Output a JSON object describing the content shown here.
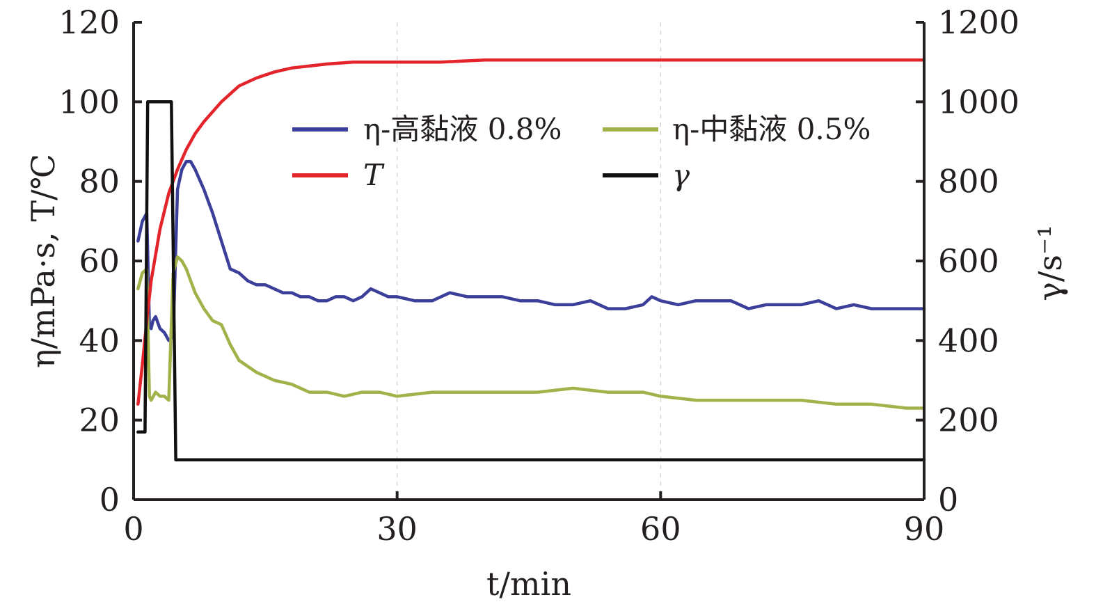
{
  "chart_data": {
    "type": "line",
    "title": "",
    "xlabel": "t/min",
    "ylabel_left": "η/mPa·s, T/℃",
    "ylabel_right": "γ/s⁻¹",
    "xlim": [
      0,
      90
    ],
    "ylim_left": [
      0,
      120
    ],
    "ylim_right": [
      0,
      1200
    ],
    "x_ticks": [
      "0",
      "30",
      "60",
      "90"
    ],
    "y_left_ticks": [
      "0",
      "20",
      "40",
      "60",
      "80",
      "100",
      "120"
    ],
    "y_right_ticks": [
      "0",
      "200",
      "400",
      "600",
      "800",
      "1000",
      "1200"
    ],
    "grid": true,
    "legend_position": "upper-center",
    "series": [
      {
        "name": "η-高黏液 0.8%",
        "axis": "left",
        "color": "#3b3f9a",
        "x": [
          0.5,
          1,
          1.5,
          1.8,
          2,
          2.2,
          2.5,
          3,
          3.5,
          4,
          4.5,
          5,
          5.5,
          6,
          6.5,
          7,
          8,
          9,
          10,
          11,
          12,
          13,
          14,
          15,
          16,
          17,
          18,
          19,
          20,
          21,
          22,
          23,
          24,
          25,
          26,
          27,
          28,
          29,
          30,
          32,
          34,
          36,
          38,
          40,
          42,
          44,
          46,
          48,
          50,
          52,
          54,
          56,
          58,
          59,
          60,
          62,
          64,
          66,
          68,
          70,
          72,
          74,
          76,
          78,
          80,
          82,
          84,
          86,
          88,
          90
        ],
        "y": [
          65,
          70,
          72,
          44,
          43,
          45,
          46,
          43,
          42,
          40,
          41,
          78,
          83,
          85,
          85,
          83,
          78,
          72,
          65,
          58,
          57,
          55,
          54,
          54,
          53,
          52,
          52,
          51,
          51,
          50,
          50,
          51,
          51,
          50,
          51,
          53,
          52,
          51,
          51,
          50,
          50,
          52,
          51,
          51,
          51,
          50,
          50,
          49,
          49,
          50,
          48,
          48,
          49,
          51,
          50,
          49,
          50,
          50,
          50,
          48,
          49,
          49,
          49,
          50,
          48,
          49,
          48,
          48,
          48,
          48
        ]
      },
      {
        "name": "η-中黏液 0.5%",
        "axis": "left",
        "color": "#a3b14a",
        "x": [
          0.5,
          1,
          1.5,
          1.8,
          2,
          2.5,
          3,
          3.5,
          4,
          4.5,
          5,
          5.5,
          6,
          7,
          8,
          9,
          10,
          11,
          12,
          14,
          16,
          18,
          20,
          22,
          24,
          26,
          28,
          30,
          34,
          38,
          42,
          46,
          50,
          54,
          58,
          60,
          64,
          68,
          72,
          76,
          80,
          84,
          88,
          90
        ],
        "y": [
          53,
          57,
          58,
          26,
          25,
          27,
          26,
          26,
          25,
          57,
          61,
          60,
          58,
          52,
          48,
          45,
          44,
          39,
          35,
          32,
          30,
          29,
          27,
          27,
          26,
          27,
          27,
          26,
          27,
          27,
          27,
          27,
          28,
          27,
          27,
          26,
          25,
          25,
          25,
          25,
          24,
          24,
          23,
          23
        ]
      },
      {
        "name": "T",
        "axis": "left",
        "color": "#e3242b",
        "x": [
          0.5,
          1,
          1.5,
          2,
          3,
          4,
          5,
          6,
          7,
          8,
          10,
          12,
          14,
          16,
          18,
          20,
          22,
          25,
          30,
          35,
          40,
          50,
          60,
          70,
          80,
          90
        ],
        "y": [
          24,
          34,
          45,
          55,
          68,
          77,
          83,
          88,
          92,
          95,
          100,
          104,
          106,
          107.5,
          108.5,
          109,
          109.5,
          110,
          110,
          110,
          110.5,
          110.5,
          110.5,
          110.5,
          110.5,
          110.5
        ]
      },
      {
        "name": "γ",
        "axis": "right",
        "color": "#111111",
        "x": [
          0.5,
          1.3,
          1.6,
          1.8,
          4.3,
          4.8,
          90
        ],
        "y": [
          170,
          170,
          1000,
          1000,
          1000,
          100,
          100
        ]
      }
    ]
  }
}
